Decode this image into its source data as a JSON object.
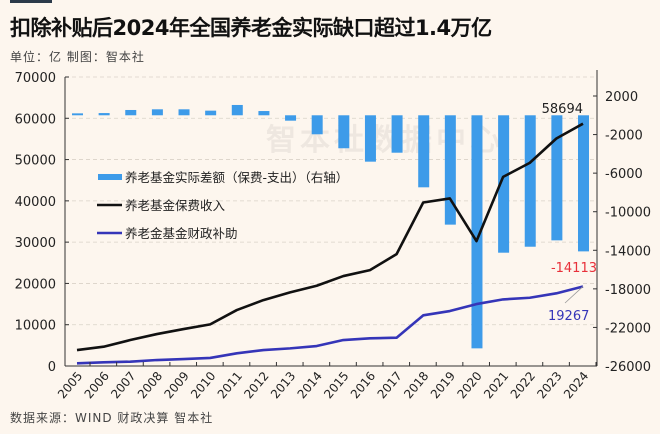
{
  "header": {
    "title": "扣除补贴后2024年全国养老金实际缺口超过1.4万亿",
    "subtitle": "单位：亿   制图：智本社"
  },
  "footer": {
    "source": "数据来源：WIND 财政决算 智本社"
  },
  "watermark": "智本社数据中心",
  "colors": {
    "gap": "#3d9be9",
    "revenue": "#111111",
    "subsidy": "#3535b8",
    "negative_label": "#e8303a",
    "background": "#fdf6ee"
  },
  "chart_data": {
    "type": "bar+line",
    "categories": [
      "2005",
      "2006",
      "2007",
      "2008",
      "2009",
      "2010",
      "2011",
      "2012",
      "2013",
      "2014",
      "2015",
      "2016",
      "2017",
      "2018",
      "2019",
      "2020",
      "2021",
      "2022",
      "2023",
      "2024"
    ],
    "left_axis": {
      "range": [
        0,
        70000
      ],
      "ticks": [
        "0",
        "10000",
        "20000",
        "30000",
        "40000",
        "50000",
        "60000",
        "70000"
      ]
    },
    "right_axis": {
      "range": [
        -26000,
        2000
      ],
      "ticks": [
        "2000",
        "-2000",
        "-6000",
        "-10000",
        "-14000",
        "-18000",
        "-22000",
        "-26000"
      ]
    },
    "grid": true,
    "legend_position": "upper-left",
    "series": [
      {
        "name": "养老基金实际差额（保费-支出）（右轴）",
        "type": "bar",
        "axis": "right",
        "values": [
          200,
          230,
          550,
          620,
          620,
          480,
          1070,
          440,
          -560,
          -1970,
          -3420,
          -4810,
          -3880,
          -7470,
          -11340,
          -24170,
          -14250,
          -13630,
          -12970,
          -14113
        ]
      },
      {
        "name": "养老基金保费收入",
        "type": "line",
        "axis": "left",
        "values": [
          3870,
          4670,
          6290,
          7740,
          8950,
          10090,
          13550,
          15970,
          17830,
          19430,
          21780,
          23230,
          27100,
          39600,
          40580,
          30250,
          45800,
          49200,
          55100,
          58694
        ]
      },
      {
        "name": "养老金基金财政补助",
        "type": "line",
        "axis": "left",
        "values": [
          650,
          890,
          1050,
          1450,
          1690,
          1950,
          3070,
          3870,
          4270,
          4840,
          6290,
          6700,
          6850,
          12270,
          13310,
          15000,
          16130,
          16530,
          17600,
          19267
        ]
      }
    ],
    "annotations": {
      "revenue_last": "58694",
      "gap_last": "-14113",
      "subsidy_last": "19267"
    }
  }
}
